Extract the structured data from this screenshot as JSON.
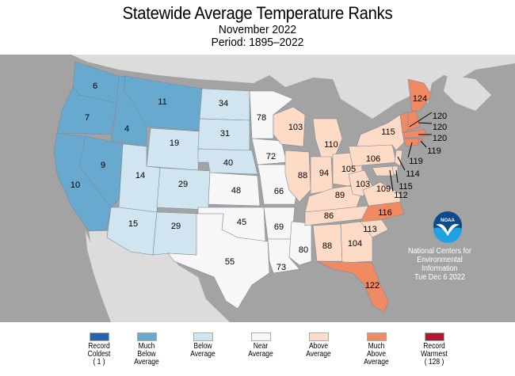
{
  "header": {
    "title": "Statewide Average Temperature Ranks",
    "subtitle": "November 2022",
    "period": "Period: 1895–2022"
  },
  "colors": {
    "record_coldest": "#2166ac",
    "much_below": "#67a9cf",
    "below": "#d1e5f0",
    "near": "#f7f7f7",
    "above": "#fddbc7",
    "much_above": "#ef8a62",
    "record_warmest": "#b2182b",
    "ocean": "#a3a3a3",
    "land_other": "#dcdcdc"
  },
  "states": [
    {
      "abbr": "WA",
      "rank": "6",
      "category": "much_below"
    },
    {
      "abbr": "OR",
      "rank": "7",
      "category": "much_below"
    },
    {
      "abbr": "CA",
      "rank": "10",
      "category": "much_below"
    },
    {
      "abbr": "ID",
      "rank": "4",
      "category": "much_below"
    },
    {
      "abbr": "NV",
      "rank": "9",
      "category": "much_below"
    },
    {
      "abbr": "MT",
      "rank": "11",
      "category": "much_below"
    },
    {
      "abbr": "WY",
      "rank": "19",
      "category": "below"
    },
    {
      "abbr": "UT",
      "rank": "14",
      "category": "below"
    },
    {
      "abbr": "CO",
      "rank": "29",
      "category": "below"
    },
    {
      "abbr": "AZ",
      "rank": "15",
      "category": "below"
    },
    {
      "abbr": "NM",
      "rank": "29",
      "category": "below"
    },
    {
      "abbr": "ND",
      "rank": "34",
      "category": "below"
    },
    {
      "abbr": "SD",
      "rank": "31",
      "category": "below"
    },
    {
      "abbr": "NE",
      "rank": "40",
      "category": "below"
    },
    {
      "abbr": "KS",
      "rank": "48",
      "category": "near"
    },
    {
      "abbr": "OK",
      "rank": "45",
      "category": "near"
    },
    {
      "abbr": "TX",
      "rank": "55",
      "category": "near"
    },
    {
      "abbr": "MN",
      "rank": "78",
      "category": "near"
    },
    {
      "abbr": "IA",
      "rank": "72",
      "category": "near"
    },
    {
      "abbr": "MO",
      "rank": "66",
      "category": "near"
    },
    {
      "abbr": "AR",
      "rank": "69",
      "category": "near"
    },
    {
      "abbr": "LA",
      "rank": "73",
      "category": "near"
    },
    {
      "abbr": "MS",
      "rank": "80",
      "category": "near"
    },
    {
      "abbr": "WI",
      "rank": "103",
      "category": "above"
    },
    {
      "abbr": "MI",
      "rank": "110",
      "category": "above"
    },
    {
      "abbr": "IL",
      "rank": "88",
      "category": "above"
    },
    {
      "abbr": "IN",
      "rank": "94",
      "category": "above"
    },
    {
      "abbr": "OH",
      "rank": "105",
      "category": "above"
    },
    {
      "abbr": "KY",
      "rank": "89",
      "category": "above"
    },
    {
      "abbr": "TN",
      "rank": "86",
      "category": "above"
    },
    {
      "abbr": "AL",
      "rank": "88",
      "category": "above"
    },
    {
      "abbr": "GA",
      "rank": "104",
      "category": "above"
    },
    {
      "abbr": "SC",
      "rank": "113",
      "category": "above"
    },
    {
      "abbr": "NC",
      "rank": "116",
      "category": "much_above"
    },
    {
      "abbr": "FL",
      "rank": "122",
      "category": "much_above"
    },
    {
      "abbr": "WV",
      "rank": "103",
      "category": "above"
    },
    {
      "abbr": "VA",
      "rank": "109",
      "category": "above"
    },
    {
      "abbr": "PA",
      "rank": "106",
      "category": "above"
    },
    {
      "abbr": "NY",
      "rank": "115",
      "category": "above"
    },
    {
      "abbr": "ME",
      "rank": "124",
      "category": "much_above"
    },
    {
      "abbr": "VT",
      "rank": "120",
      "category": "much_above"
    },
    {
      "abbr": "NH",
      "rank": "120",
      "category": "much_above"
    },
    {
      "abbr": "MA",
      "rank": "120",
      "category": "much_above"
    },
    {
      "abbr": "RI",
      "rank": "119",
      "category": "much_above"
    },
    {
      "abbr": "CT",
      "rank": "119",
      "category": "much_above"
    },
    {
      "abbr": "NJ",
      "rank": "114",
      "category": "above"
    },
    {
      "abbr": "DE",
      "rank": "115",
      "category": "above"
    },
    {
      "abbr": "MD",
      "rank": "112",
      "category": "above"
    }
  ],
  "legend": [
    {
      "key": "record_coldest",
      "lines": [
        "Record",
        "Coldest",
        "( 1 )"
      ]
    },
    {
      "key": "much_below",
      "lines": [
        "Much",
        "Below",
        "Average"
      ]
    },
    {
      "key": "below",
      "lines": [
        "Below",
        "Average"
      ]
    },
    {
      "key": "near",
      "lines": [
        "Near",
        "Average"
      ]
    },
    {
      "key": "above",
      "lines": [
        "Above",
        "Average"
      ]
    },
    {
      "key": "much_above",
      "lines": [
        "Much",
        "Above",
        "Average"
      ]
    },
    {
      "key": "record_warmest",
      "lines": [
        "Record",
        "Warmest",
        "( 128 )"
      ]
    }
  ],
  "credit": {
    "logo_text": "NOAA",
    "lines": [
      "National Centers for",
      "Environmental",
      "Information",
      "Tue Dec  6 2022"
    ]
  }
}
